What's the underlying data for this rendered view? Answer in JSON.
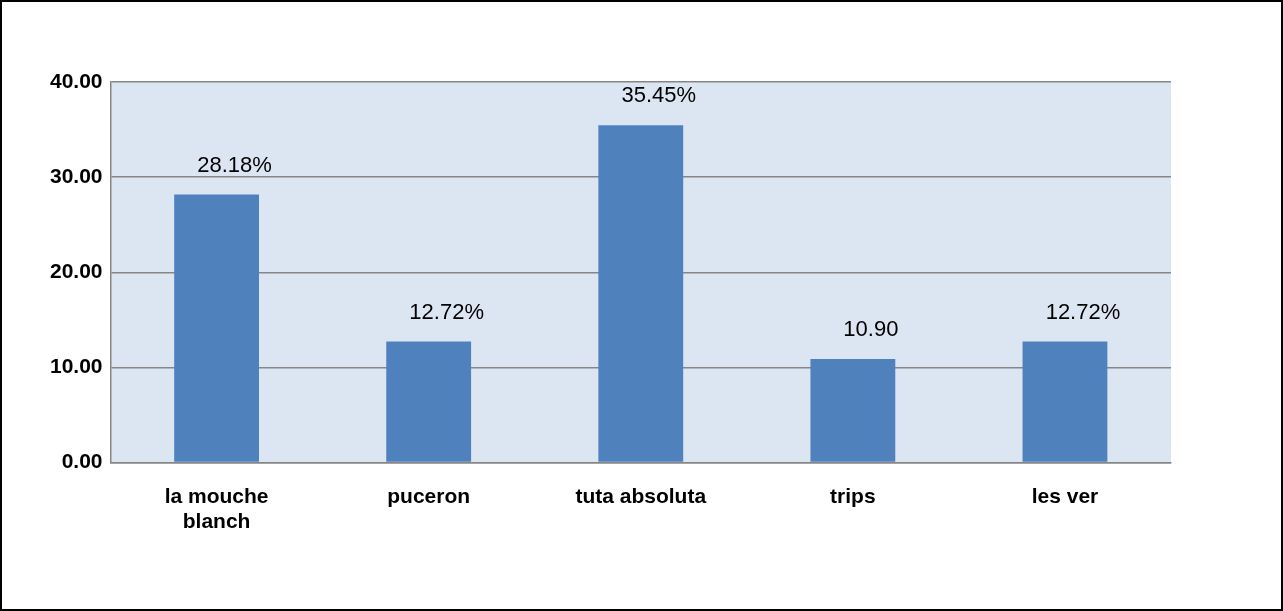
{
  "chart_data": {
    "type": "bar",
    "categories": [
      "la mouche blanch",
      "puceron",
      "tuta absoluta",
      "trips",
      "les ver"
    ],
    "values": [
      28.18,
      12.72,
      35.45,
      10.9,
      12.72
    ],
    "value_labels": [
      "28.18%",
      "12.72%",
      "35.45%",
      "10.90",
      "12.72%"
    ],
    "color": "#4f81bd",
    "ylim": [
      0,
      40
    ],
    "yticks": [
      {
        "value": 0,
        "label": "0.00"
      },
      {
        "value": 10,
        "label": "10.00"
      },
      {
        "value": 20,
        "label": "20.00"
      },
      {
        "value": 30,
        "label": "30.00"
      },
      {
        "value": 40,
        "label": "40.00"
      }
    ],
    "grid": "y"
  }
}
